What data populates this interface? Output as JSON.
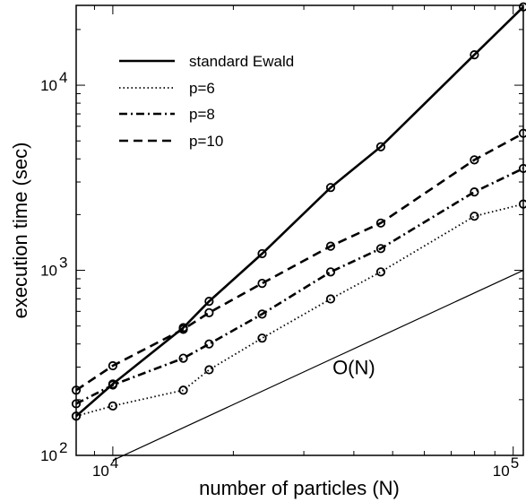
{
  "chart_data": {
    "type": "line",
    "title": "",
    "xlabel": "number of  particles (N)",
    "ylabel": "execution time (sec)",
    "xscale": "log",
    "yscale": "log",
    "xlim": [
      8100,
      106000
    ],
    "ylim": [
      100,
      27000
    ],
    "x_ticks": [
      {
        "value": 10000,
        "base": "10",
        "exp": "4"
      },
      {
        "value": 100000,
        "base": "10",
        "exp": "5"
      }
    ],
    "y_ticks": [
      {
        "value": 100,
        "base": "10",
        "exp": "2"
      },
      {
        "value": 1000,
        "base": "10",
        "exp": "3"
      },
      {
        "value": 10000,
        "base": "10",
        "exp": "4"
      }
    ],
    "grid": false,
    "legend_position": "top-left",
    "series": [
      {
        "name": "standard Ewald",
        "line_style": "solid",
        "color": "#000000",
        "x": [
          8100,
          10000,
          15000,
          17400,
          23600,
          35000,
          46700,
          80000,
          106000
        ],
        "y": [
          163,
          243,
          490,
          680,
          1230,
          2800,
          4650,
          14600,
          26500
        ]
      },
      {
        "name": "p=6",
        "line_style": "dotted",
        "color": "#000000",
        "x": [
          8100,
          10000,
          15000,
          17400,
          23600,
          35000,
          46700,
          80000,
          106000
        ],
        "y": [
          163,
          185,
          225,
          290,
          430,
          700,
          980,
          1960,
          2280
        ]
      },
      {
        "name": "p=8",
        "line_style": "dashdot",
        "color": "#000000",
        "x": [
          8100,
          10000,
          15000,
          17400,
          23600,
          35000,
          46700,
          80000,
          106000
        ],
        "y": [
          190,
          240,
          335,
          400,
          580,
          980,
          1310,
          2650,
          3550
        ]
      },
      {
        "name": "p=10",
        "line_style": "dashed",
        "color": "#000000",
        "x": [
          8100,
          10000,
          15000,
          17400,
          23600,
          35000,
          46700,
          80000,
          106000
        ],
        "y": [
          225,
          305,
          480,
          590,
          850,
          1350,
          1800,
          3950,
          5500
        ]
      }
    ],
    "reference_line": {
      "label": "O(N)",
      "x": [
        10000,
        106000
      ],
      "y": [
        94,
        1000
      ]
    },
    "annotations": [
      {
        "text": "O(N)",
        "x": 40000,
        "y": 300
      }
    ]
  }
}
